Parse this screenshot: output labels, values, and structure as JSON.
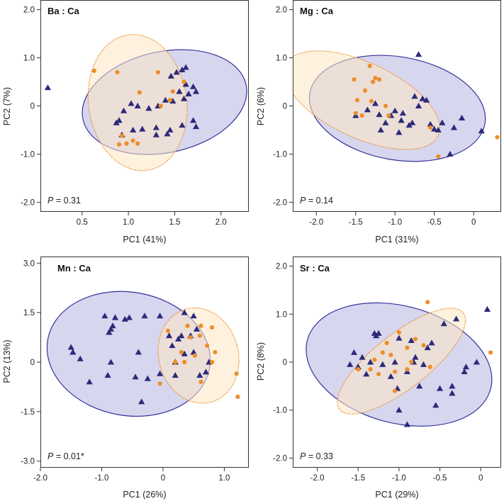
{
  "colors": {
    "group_a_marker": "#2b2a7a",
    "group_b_marker": "#ec8e2b",
    "ellipse_a_fill": "#c9c8ea",
    "ellipse_a_stroke": "#35339a",
    "ellipse_b_fill": "#fde7c4",
    "ellipse_b_stroke": "#ec8e2b"
  },
  "chart_data": [
    {
      "type": "scatter",
      "title": "Ba : Ca",
      "xlabel": "PC1 (41%)",
      "ylabel": "PC2 (7%)",
      "p_label": "P",
      "p_text": " = 0.31",
      "xlim": [
        0.05,
        2.3
      ],
      "ylim": [
        -2.2,
        2.2
      ],
      "xticks": [
        0.5,
        1.0,
        1.5,
        2.0
      ],
      "xtick_labels": [
        "0.5",
        "1.0",
        "1.5",
        "2.0"
      ],
      "yticks": [
        -2.0,
        -1.0,
        0.0,
        1.0,
        2.0
      ],
      "ytick_labels": [
        "-2.0",
        "-1.0",
        "0",
        "1.0",
        "2.0"
      ],
      "ellipse_a": {
        "cx": 1.39,
        "cy": 0.08,
        "rx": 0.9,
        "ry": 1.05,
        "angle": -12
      },
      "ellipse_b": {
        "cx": 1.1,
        "cy": 0.07,
        "rx": 0.53,
        "ry": 1.42,
        "angle": -8
      },
      "series": [
        {
          "marker": "triangle",
          "x": [
            0.13,
            1.62,
            1.58,
            1.52,
            1.46,
            1.62,
            1.7,
            1.73,
            1.65,
            1.55,
            1.6,
            1.48,
            1.4,
            1.32,
            1.22,
            1.1,
            1.03,
            0.95,
            0.9,
            0.87,
            0.93,
            1.05,
            1.15,
            1.3,
            1.45,
            1.58,
            1.7,
            1.73,
            1.3,
            1.42
          ],
          "y": [
            0.38,
            0.8,
            0.75,
            0.7,
            0.62,
            0.45,
            0.4,
            0.3,
            0.25,
            0.3,
            0.15,
            0.1,
            0.12,
            0.0,
            -0.05,
            0.0,
            0.05,
            -0.1,
            -0.3,
            -0.35,
            -0.6,
            -0.5,
            -0.48,
            -0.45,
            -0.5,
            -0.4,
            -0.3,
            -0.43,
            -0.6,
            -0.58
          ]
        },
        {
          "marker": "circle",
          "x": [
            0.63,
            0.88,
            1.32,
            1.6,
            1.48,
            1.12,
            0.93,
            0.98,
            1.05,
            1.1,
            0.9,
            1.35,
            1.45
          ],
          "y": [
            0.73,
            0.7,
            0.7,
            0.5,
            0.3,
            0.28,
            -0.62,
            -0.78,
            -0.72,
            -0.78,
            -0.8,
            0.0,
            0.12
          ]
        }
      ]
    },
    {
      "type": "scatter",
      "title": "Mg : Ca",
      "xlabel": "PC1 (31%)",
      "ylabel": "PC2 (6%)",
      "p_label": "P",
      "p_text": " = 0.14",
      "xlim": [
        -2.3,
        0.35
      ],
      "ylim": [
        -2.2,
        2.2
      ],
      "xticks": [
        -2.0,
        -1.5,
        -1.0,
        -0.5,
        0.0
      ],
      "xtick_labels": [
        "-2.0",
        "-1.5",
        "-1.0",
        "-0.5",
        "0"
      ],
      "yticks": [
        -2.0,
        -1.0,
        0.0,
        1.0,
        2.0
      ],
      "ytick_labels": [
        "-2.0",
        "-1.0",
        "0",
        "1.0",
        "2.0"
      ],
      "ellipse_a": {
        "cx": -0.97,
        "cy": -0.05,
        "rx": 1.13,
        "ry": 1.07,
        "angle": 10
      },
      "ellipse_b": {
        "cx": -1.42,
        "cy": 0.12,
        "rx": 1.07,
        "ry": 0.78,
        "angle": 25
      },
      "series": [
        {
          "marker": "triangle",
          "x": [
            -0.7,
            -0.75,
            -0.65,
            -0.6,
            -0.7,
            -0.9,
            -1.05,
            -1.2,
            -1.35,
            -1.5,
            -1.25,
            -1.0,
            -0.92,
            -0.78,
            -0.55,
            -0.4,
            -0.25,
            -0.3,
            -0.45,
            -0.82,
            -1.12,
            -1.18,
            -0.95,
            -0.15,
            0.1,
            -0.5
          ],
          "y": [
            1.07,
            0.2,
            0.15,
            0.12,
            0.0,
            -0.15,
            -0.2,
            -0.18,
            -0.08,
            -0.2,
            0.05,
            -0.1,
            -0.3,
            -0.35,
            -0.38,
            -0.35,
            -0.45,
            -1.0,
            -0.5,
            -0.4,
            -0.35,
            -0.5,
            -0.55,
            -0.25,
            -0.52,
            -0.48
          ]
        },
        {
          "marker": "circle",
          "x": [
            -1.52,
            -1.32,
            -1.25,
            -1.28,
            -1.38,
            -1.48,
            -1.3,
            -1.12,
            -1.08,
            -1.5,
            -1.42,
            -0.55,
            -0.45,
            0.3,
            -1.2
          ],
          "y": [
            0.55,
            0.83,
            0.58,
            0.5,
            0.32,
            0.12,
            0.1,
            0.0,
            -0.2,
            -0.15,
            -0.2,
            -0.45,
            -1.05,
            -0.65,
            0.55
          ]
        }
      ]
    },
    {
      "type": "scatter",
      "title": "Mn : Ca",
      "xlabel": "PC1 (26%)",
      "ylabel": "PC2 (13%)",
      "p_label": "P",
      "p_text": " = 0.01*",
      "xlim": [
        -2.0,
        1.4
      ],
      "ylim": [
        -3.2,
        3.2
      ],
      "xticks": [
        -2.0,
        -1.0,
        0.0,
        1.0
      ],
      "xtick_labels": [
        "-2.0",
        "-1.0",
        "0",
        "1.0"
      ],
      "yticks": [
        -3.0,
        -1.5,
        0.0,
        1.5,
        3.0
      ],
      "ytick_labels": [
        "-3.0",
        "-1.5",
        "0",
        "1.5",
        "3.0"
      ],
      "ellipse_a": {
        "cx": -0.56,
        "cy": 0.25,
        "rx": 1.34,
        "ry": 1.87,
        "angle": 10
      },
      "ellipse_b": {
        "cx": 0.58,
        "cy": 0.2,
        "rx": 0.65,
        "ry": 1.46,
        "angle": -15
      },
      "series": [
        {
          "marker": "triangle",
          "x": [
            -0.95,
            -0.78,
            -0.55,
            -0.3,
            -0.05,
            -0.62,
            -0.82,
            -0.85,
            -0.88,
            -1.5,
            -1.47,
            -1.35,
            -1.2,
            -0.9,
            -0.85,
            -0.45,
            -0.25,
            -0.05,
            0.2,
            0.3,
            0.45,
            0.5,
            0.35,
            0.55,
            0.25,
            0.1,
            0.15,
            0.5,
            0.75,
            0.7,
            0.6,
            0.2,
            0.35,
            -0.4,
            -0.35
          ],
          "y": [
            1.4,
            1.35,
            1.35,
            1.4,
            1.4,
            1.3,
            1.1,
            1.0,
            0.9,
            0.45,
            0.3,
            0.1,
            -0.6,
            -0.4,
            0.0,
            -0.45,
            -0.5,
            -0.35,
            -0.4,
            0.8,
            0.8,
            1.4,
            1.5,
            1.0,
            0.7,
            0.8,
            0.5,
            0.3,
            0.0,
            -0.3,
            -0.4,
            0.0,
            0.25,
            0.3,
            -1.2
          ]
        },
        {
          "marker": "circle",
          "x": [
            0.4,
            0.62,
            0.8,
            0.6,
            0.72,
            0.85,
            0.8,
            0.45,
            0.3,
            0.2,
            0.35,
            -0.05,
            0.62,
            1.2,
            1.22,
            0.08,
            0.52
          ],
          "y": [
            1.1,
            1.1,
            1.05,
            0.8,
            0.5,
            0.3,
            0.0,
            0.75,
            0.3,
            0.0,
            0.0,
            -0.65,
            -0.6,
            -0.35,
            -1.05,
            0.95,
            0.2
          ]
        }
      ]
    },
    {
      "type": "scatter",
      "title": "Sr : Ca",
      "xlabel": "PC1 (29%)",
      "ylabel": "PC2 (8%)",
      "p_label": "P",
      "p_text": " = 0.33",
      "xlim": [
        -2.3,
        0.25
      ],
      "ylim": [
        -2.2,
        2.2
      ],
      "xticks": [
        -2.0,
        -1.5,
        -1.0,
        -0.5,
        0.0
      ],
      "xtick_labels": [
        "-2.0",
        "-1.5",
        "-1.0",
        "-0.5",
        "0"
      ],
      "yticks": [
        -2.0,
        -1.0,
        0.0,
        1.0,
        2.0
      ],
      "ytick_labels": [
        "-2.0",
        "-1.0",
        "0",
        "1.0",
        "2.0"
      ],
      "ellipse_a": {
        "cx": -1.0,
        "cy": -0.05,
        "rx": 1.16,
        "ry": 1.22,
        "angle": 15
      },
      "ellipse_b": {
        "cx": -0.97,
        "cy": 0.02,
        "rx": 0.96,
        "ry": 0.57,
        "angle": -38
      },
      "series": [
        {
          "marker": "triangle",
          "x": [
            -1.3,
            -1.25,
            -1.0,
            -0.85,
            -0.6,
            -0.45,
            -0.3,
            -0.8,
            -1.05,
            -1.2,
            -1.35,
            -1.45,
            -1.5,
            -1.4,
            -1.1,
            -0.9,
            -0.75,
            -0.5,
            -0.35,
            -0.2,
            -0.18,
            -0.35,
            -0.55,
            -0.9,
            -1.0,
            0.08,
            -0.05,
            -0.65,
            -0.82,
            -1.6,
            -1.55,
            -1.28,
            -0.7,
            -1.02
          ],
          "y": [
            0.6,
            0.6,
            0.5,
            0.45,
            0.4,
            0.8,
            0.9,
            0.1,
            0.0,
            -0.05,
            0.0,
            0.1,
            -0.1,
            -0.25,
            -0.3,
            -0.2,
            -0.5,
            -0.55,
            -0.5,
            -0.2,
            -0.1,
            -0.65,
            -0.9,
            -1.3,
            -1.0,
            1.1,
            0.0,
            0.3,
            0.0,
            -0.05,
            0.2,
            0.55,
            -0.05,
            -0.55
          ]
        },
        {
          "marker": "circle",
          "x": [
            -0.65,
            -1.0,
            -0.8,
            -1.15,
            -0.9,
            -1.1,
            -1.2,
            -1.3,
            -1.35,
            -1.25,
            -1.05,
            -0.9,
            -1.5,
            -0.62,
            -0.85,
            -1.05,
            0.12,
            -0.7
          ],
          "y": [
            1.25,
            0.62,
            0.48,
            0.4,
            0.3,
            0.15,
            0.2,
            0.05,
            -0.15,
            -0.25,
            -0.2,
            -0.15,
            -0.15,
            -0.1,
            0.0,
            -0.6,
            0.2,
            0.35
          ]
        }
      ]
    }
  ]
}
